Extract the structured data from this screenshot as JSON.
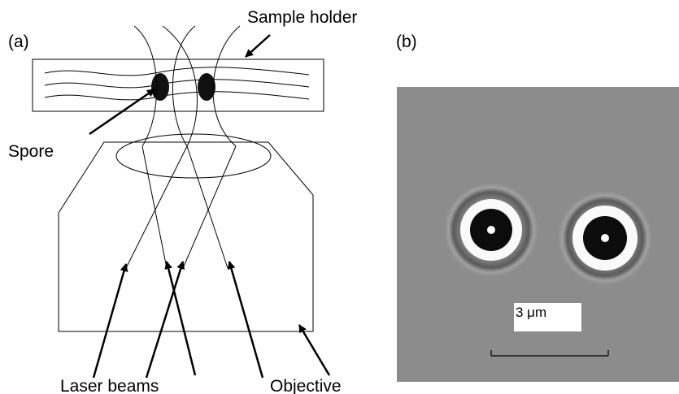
{
  "panel_a": {
    "label": "(a)",
    "sample_holder": "Sample holder",
    "spore": "Spore",
    "laser_beams": "Laser beams",
    "objective": "Objective"
  },
  "panel_b": {
    "label": "(b)",
    "scale": "3 μm"
  }
}
